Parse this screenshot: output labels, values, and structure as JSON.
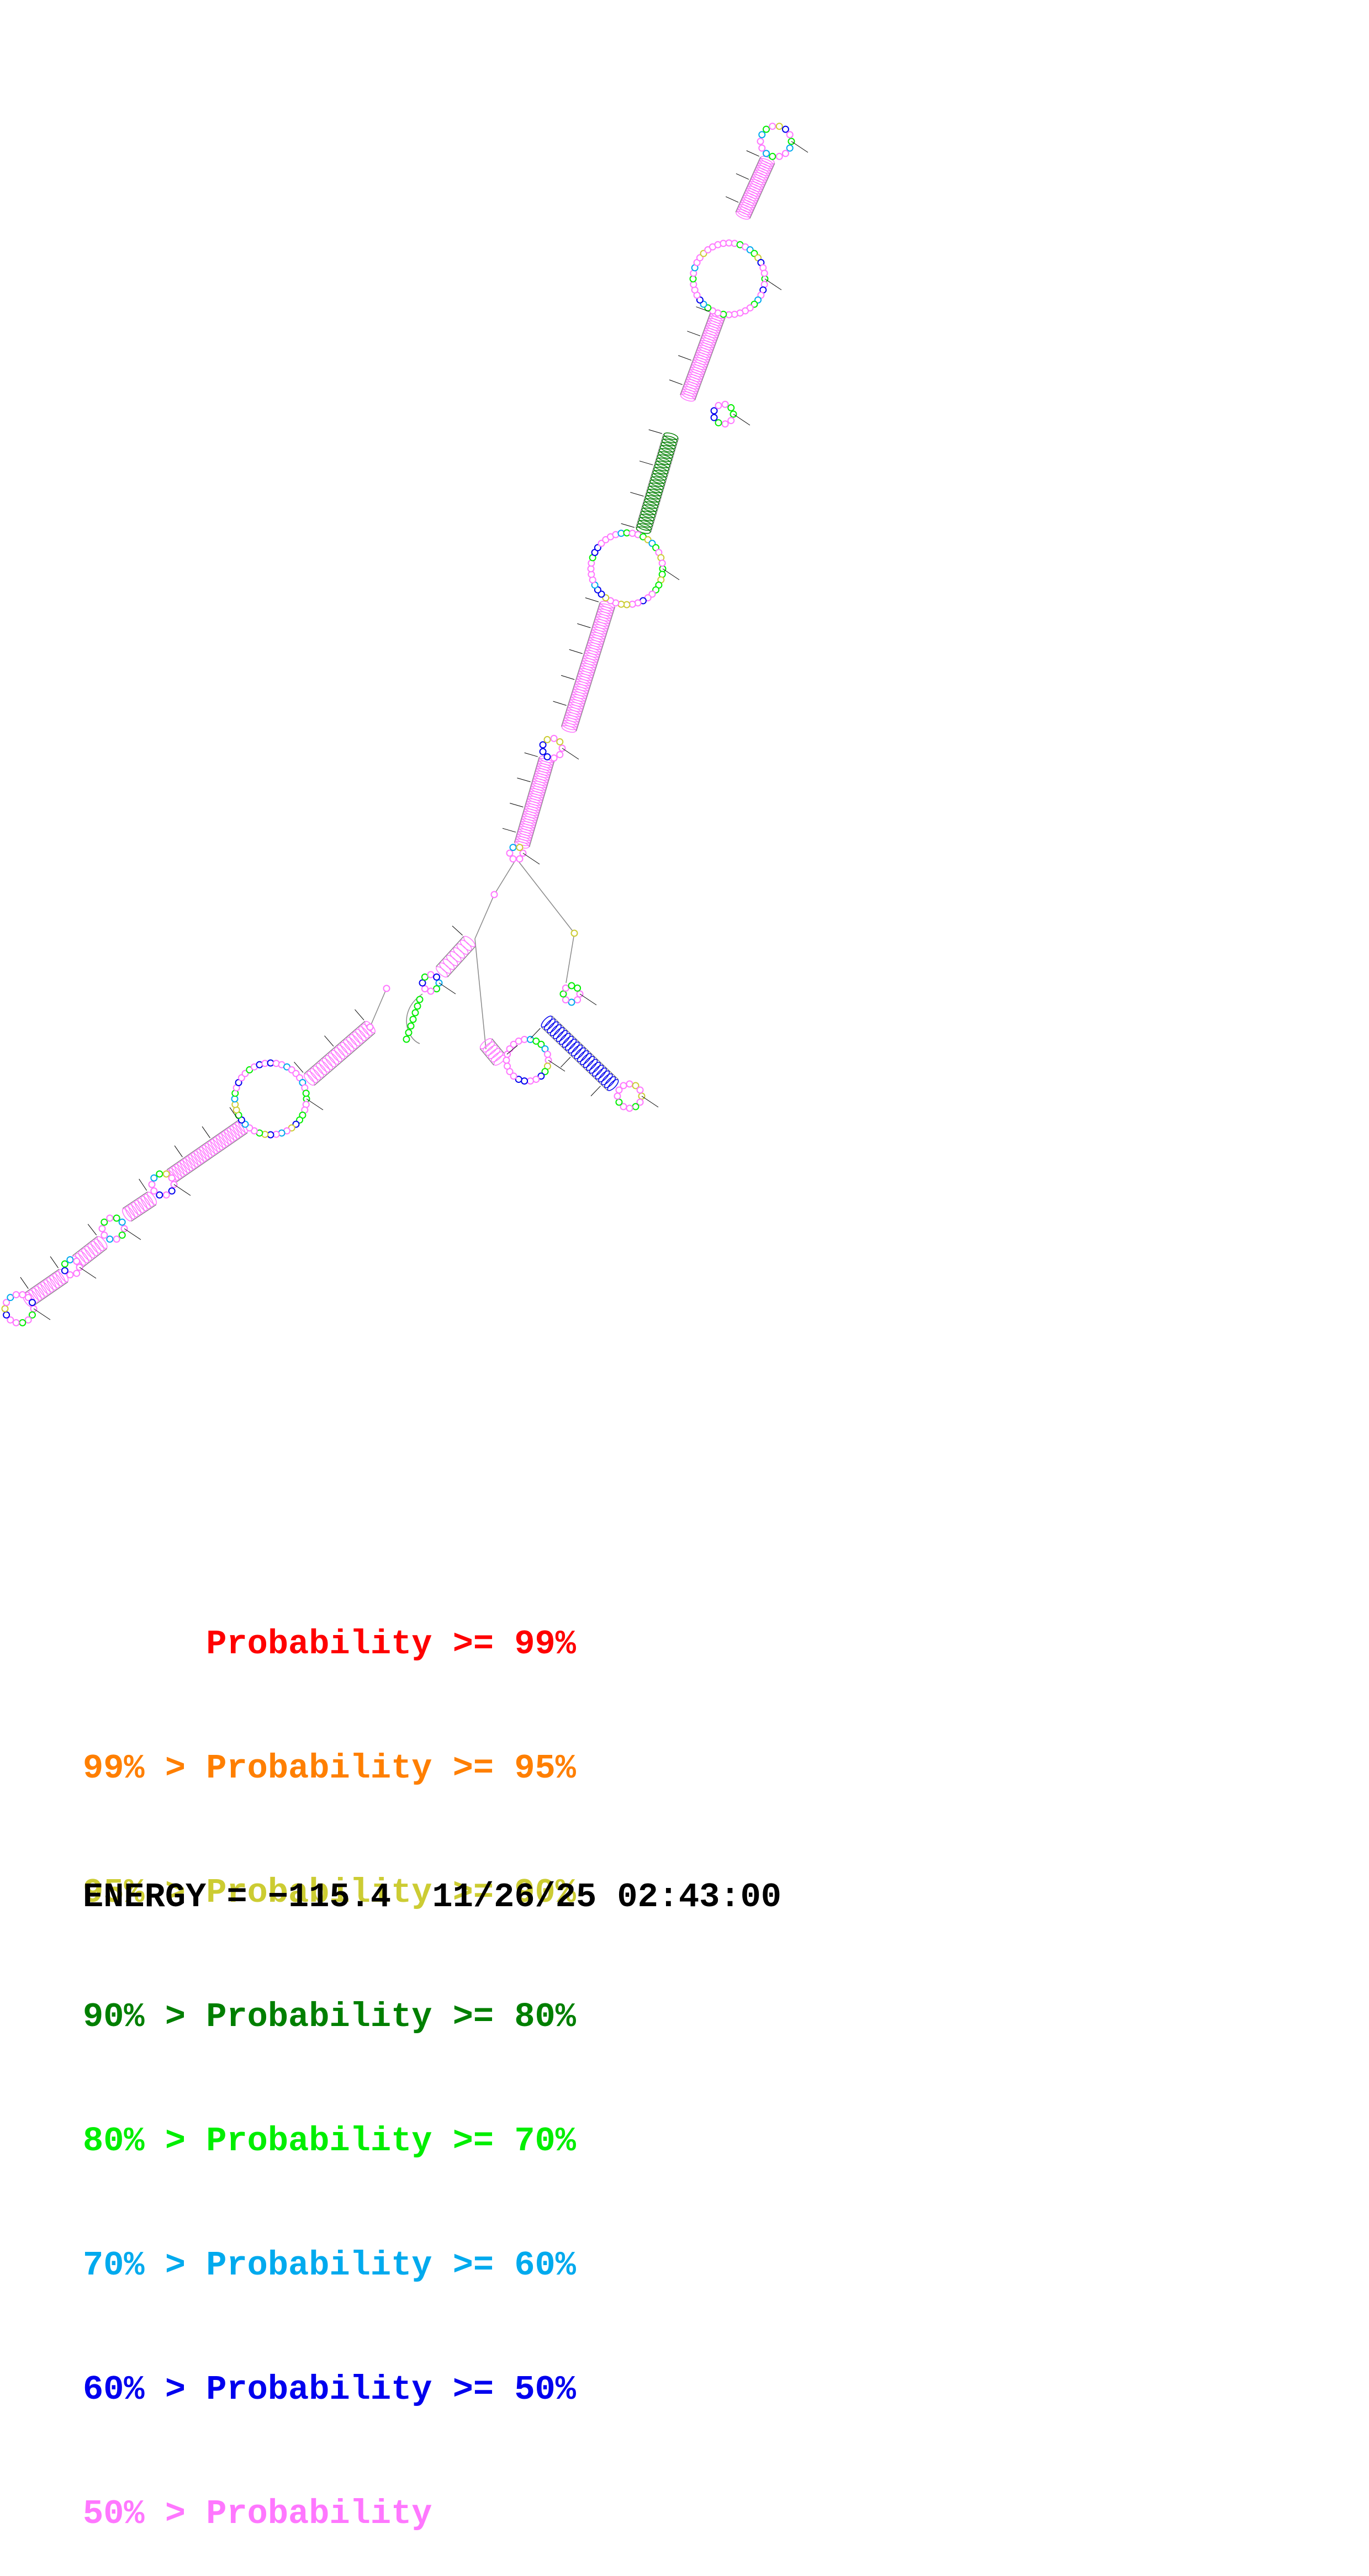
{
  "legend": {
    "rows": [
      {
        "text": "      Probability >= 99%",
        "color": "#ff0000"
      },
      {
        "text": "99% > Probability >= 95%",
        "color": "#ff7f00"
      },
      {
        "text": "95% > Probability >= 90%",
        "color": "#cccc33"
      },
      {
        "text": "90% > Probability >= 80%",
        "color": "#007f00"
      },
      {
        "text": "80% > Probability >= 70%",
        "color": "#00ee00"
      },
      {
        "text": "70% > Probability >= 60%",
        "color": "#00aaee"
      },
      {
        "text": "60% > Probability >= 50%",
        "color": "#0000ee"
      },
      {
        "text": "50% > Probability",
        "color": "#ff77ff"
      }
    ]
  },
  "footer": {
    "energy": "ENERGY = −115.4  11/26/25 02:43:00"
  },
  "colors": {
    "backbone": "#888888",
    "pair_default": "#ff77ff",
    "pair_high": "#007f00",
    "pair_mid": "#0000ee",
    "base_fill": "#ffffff"
  }
}
